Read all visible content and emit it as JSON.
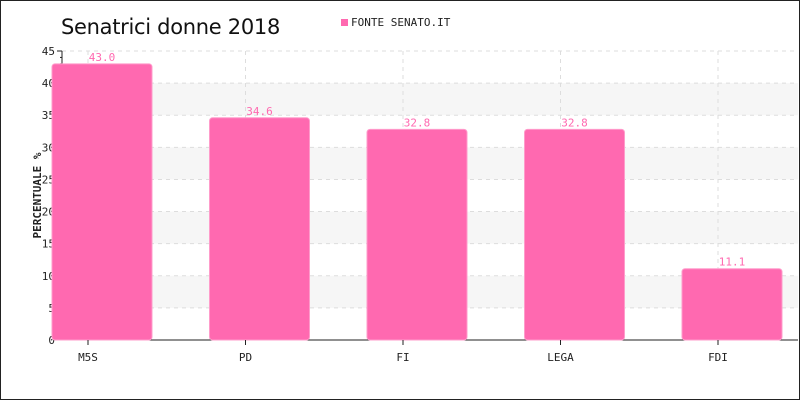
{
  "chart_data": {
    "type": "bar",
    "title": "Senatrici donne 2018",
    "legend": [
      "FONTE SENATO.IT"
    ],
    "legend_position": "top",
    "xlabel": "",
    "ylabel": "PERCENTUALE %",
    "categories": [
      "M5S",
      "PD",
      "FI",
      "LEGA",
      "FDI"
    ],
    "values": [
      43.0,
      34.6,
      32.8,
      32.8,
      11.1
    ],
    "value_labels": [
      "43.0",
      "34.6",
      "32.8",
      "32.8",
      "11.1"
    ],
    "ylim": [
      0,
      45
    ],
    "yticks": [
      0,
      5,
      10,
      15,
      20,
      25,
      30,
      35,
      40,
      45
    ],
    "grid": true,
    "colors": {
      "bar": "#ff69b0",
      "bar_edge": "#ff9ccb",
      "label": "#ff69b0",
      "band": "#f6f6f6",
      "grid": "#dddddd"
    }
  }
}
